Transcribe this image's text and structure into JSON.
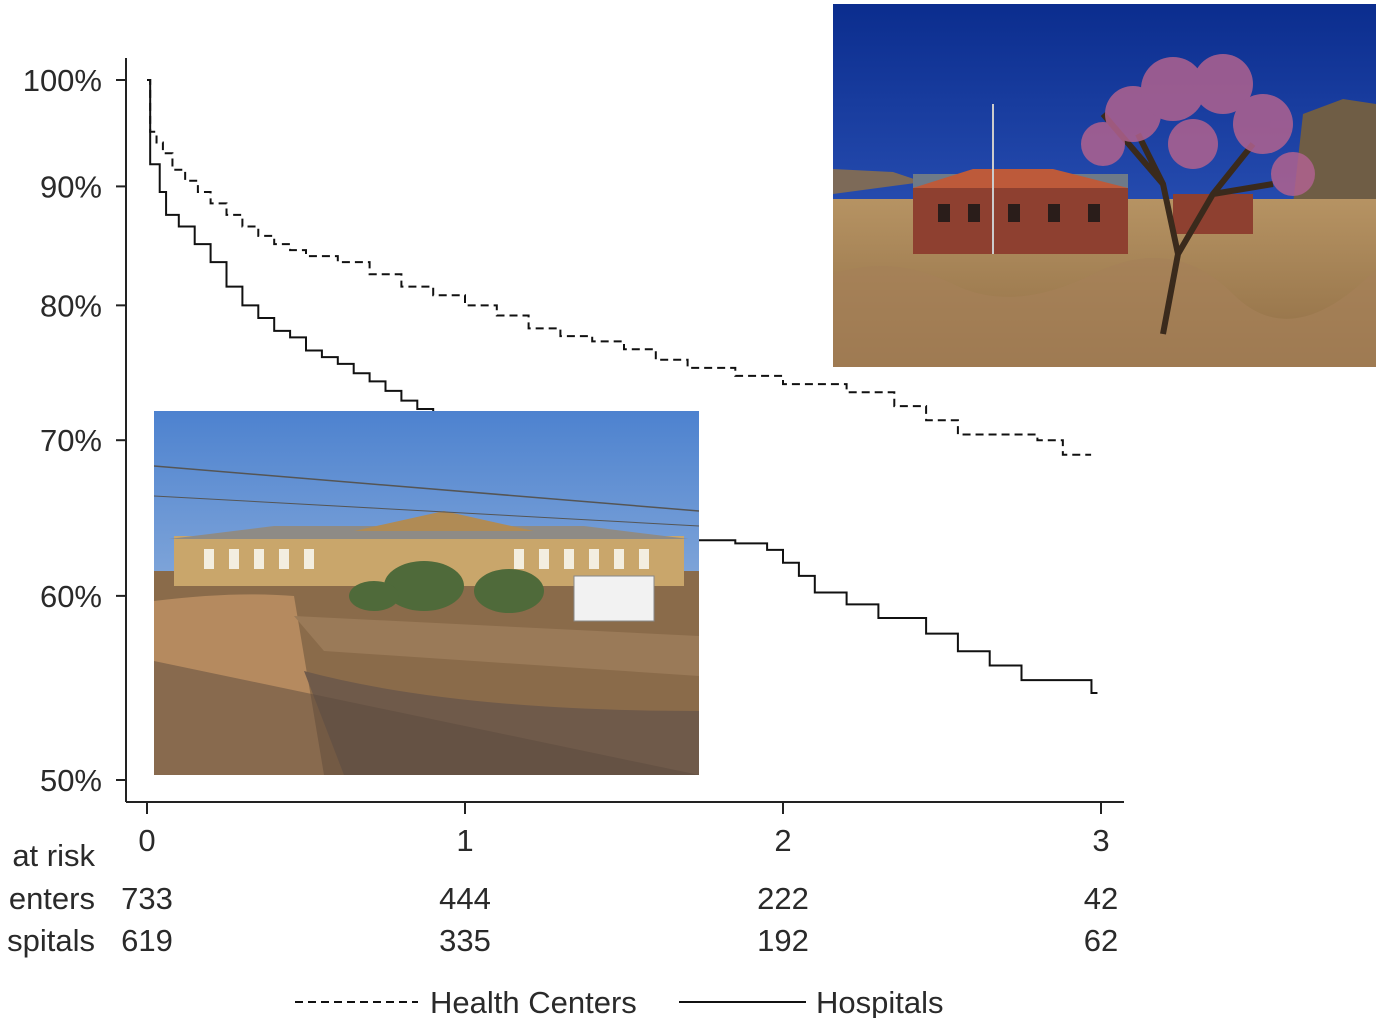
{
  "chart_data": {
    "type": "line",
    "title": "",
    "xlabel": "",
    "ylabel": "",
    "xlim": [
      0,
      3
    ],
    "ylim": [
      0.5,
      1.0
    ],
    "x_ticks": [
      {
        "value": 0,
        "label": "0"
      },
      {
        "value": 1,
        "label": "1"
      },
      {
        "value": 2,
        "label": "2"
      },
      {
        "value": 3,
        "label": "3"
      }
    ],
    "y_ticks": [
      {
        "value": 1.0,
        "label": "100%"
      },
      {
        "value": 0.9,
        "label": "90%"
      },
      {
        "value": 0.8,
        "label": "80%"
      },
      {
        "value": 0.7,
        "label": "70%"
      },
      {
        "value": 0.6,
        "label": "60%"
      },
      {
        "value": 0.5,
        "label": "50%"
      }
    ],
    "y_scale": "log",
    "grid": false,
    "legend_position": "bottom",
    "series": [
      {
        "name": "Health Centers",
        "style": "dashed",
        "color": "#111111",
        "x": [
          0,
          0.01,
          0.03,
          0.05,
          0.08,
          0.12,
          0.16,
          0.2,
          0.25,
          0.3,
          0.35,
          0.4,
          0.45,
          0.5,
          0.6,
          0.7,
          0.8,
          0.9,
          1.0,
          1.1,
          1.2,
          1.3,
          1.4,
          1.5,
          1.6,
          1.7,
          1.85,
          2.0,
          2.2,
          2.35,
          2.45,
          2.55,
          2.7,
          2.8,
          2.88,
          2.95
        ],
        "y": [
          1.0,
          0.95,
          0.94,
          0.93,
          0.915,
          0.905,
          0.895,
          0.885,
          0.875,
          0.865,
          0.857,
          0.85,
          0.845,
          0.84,
          0.835,
          0.825,
          0.815,
          0.808,
          0.8,
          0.792,
          0.782,
          0.776,
          0.772,
          0.766,
          0.758,
          0.752,
          0.746,
          0.74,
          0.734,
          0.724,
          0.714,
          0.704,
          0.704,
          0.7,
          0.69,
          0.69
        ]
      },
      {
        "name": "Hospitals",
        "style": "solid",
        "color": "#111111",
        "x": [
          0,
          0.01,
          0.04,
          0.06,
          0.1,
          0.15,
          0.2,
          0.25,
          0.3,
          0.35,
          0.4,
          0.45,
          0.5,
          0.55,
          0.6,
          0.65,
          0.7,
          0.75,
          0.8,
          0.85,
          0.9,
          1.7,
          1.85,
          1.95,
          2.0,
          2.05,
          2.1,
          2.2,
          2.3,
          2.45,
          2.55,
          2.65,
          2.75,
          2.9,
          2.97
        ],
        "y": [
          1.0,
          0.92,
          0.895,
          0.875,
          0.865,
          0.85,
          0.835,
          0.815,
          0.8,
          0.79,
          0.78,
          0.775,
          0.765,
          0.76,
          0.755,
          0.748,
          0.742,
          0.735,
          0.728,
          0.722,
          0.718,
          0.634,
          0.632,
          0.628,
          0.62,
          0.612,
          0.602,
          0.595,
          0.587,
          0.578,
          0.568,
          0.56,
          0.552,
          0.552,
          0.545
        ]
      }
    ],
    "risk_table": {
      "header": "at risk",
      "rows": [
        {
          "label": "enters",
          "values": [
            "733",
            "444",
            "222",
            "42"
          ]
        },
        {
          "label": "spitals",
          "values": [
            "619",
            "335",
            "192",
            "62"
          ]
        }
      ]
    },
    "legend": [
      "Health Centers",
      "Hospitals"
    ]
  },
  "images": {
    "top_right": {
      "icon": "photo-health-center-building"
    },
    "bottom_left": {
      "icon": "photo-hospital-building"
    }
  }
}
